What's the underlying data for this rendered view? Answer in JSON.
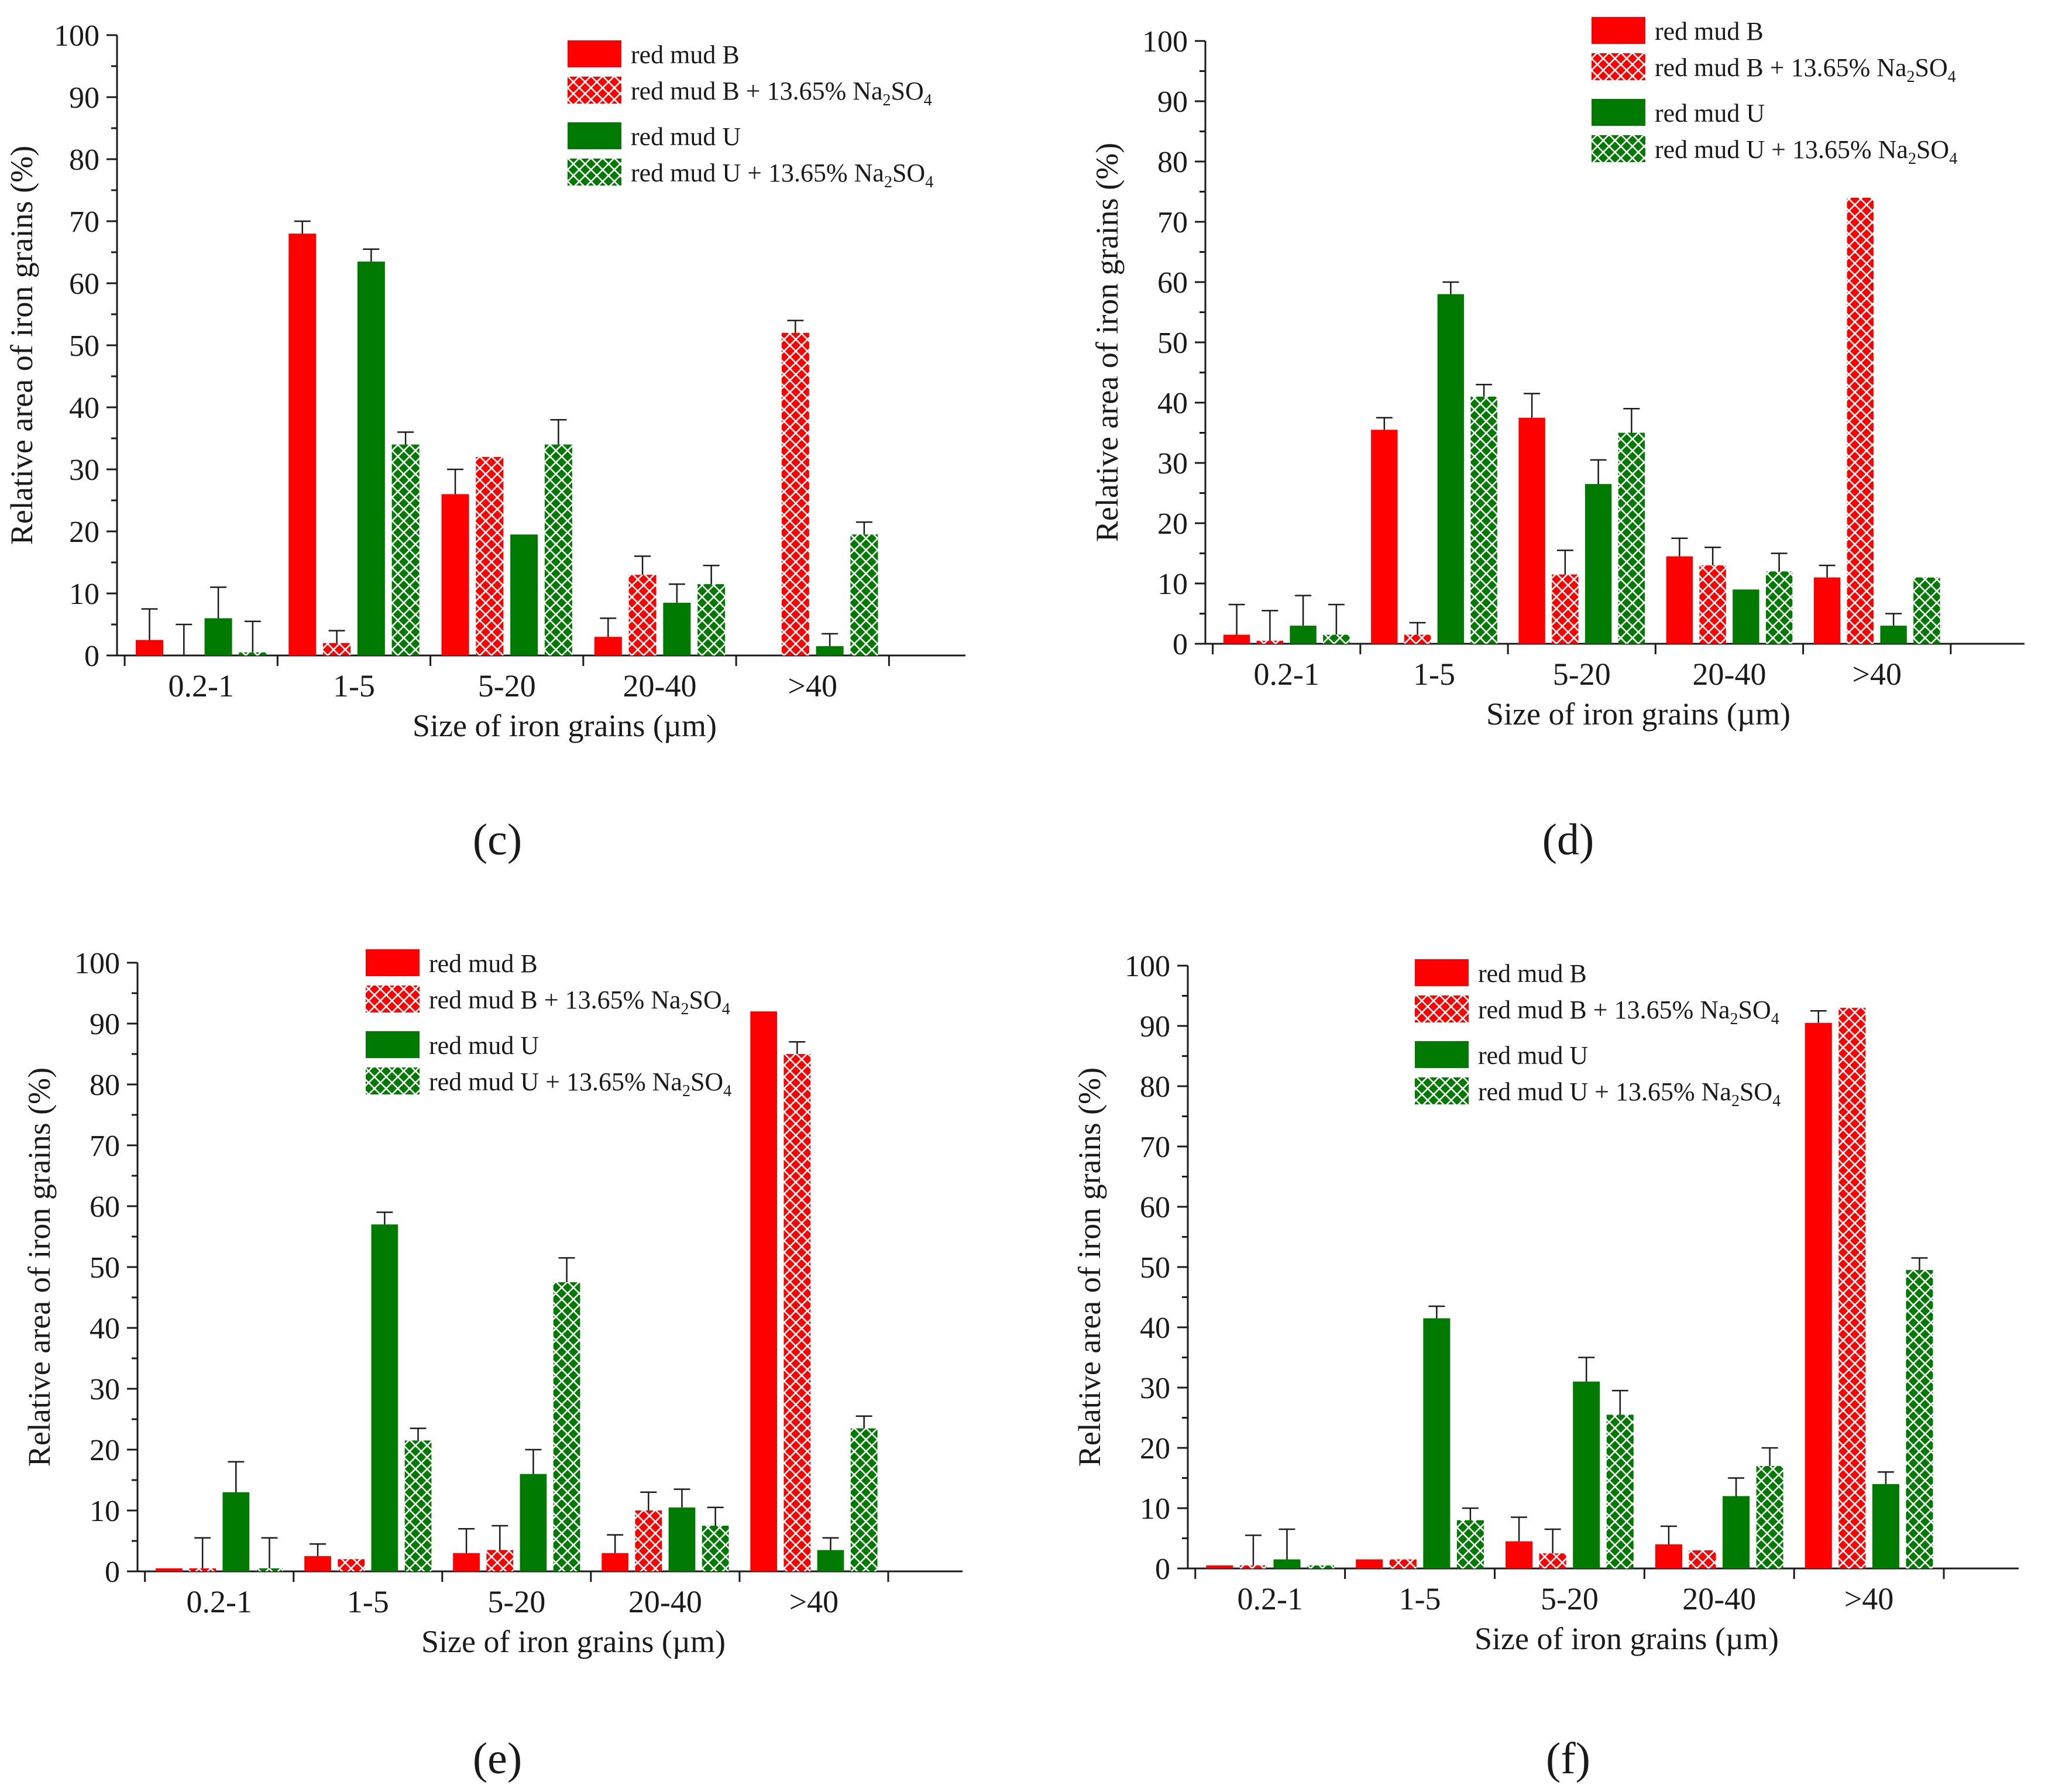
{
  "colors": {
    "red": "#ff0000",
    "green": "#007a00",
    "axis": "#1a1a1a"
  },
  "legend": {
    "entries": [
      {
        "key": "b",
        "text": "red mud B",
        "pattern": "solid",
        "color": "red"
      },
      {
        "key": "bna",
        "text": "red mud B + 13.65% Na",
        "sub1": "2",
        "mid": "SO",
        "sub2": "4",
        "pattern": "cross",
        "color": "red"
      },
      {
        "key": "u",
        "text": "red mud U",
        "pattern": "solid",
        "color": "green"
      },
      {
        "key": "una",
        "text": "red mud U + 13.65% Na",
        "sub1": "2",
        "mid": "SO",
        "sub2": "4",
        "pattern": "cross",
        "color": "green"
      }
    ]
  },
  "chart_data": [
    {
      "panel": "c",
      "type": "bar",
      "categories": [
        "0.2-1",
        "1-5",
        "5-20",
        "20-40",
        ">40"
      ],
      "xlabel": "Size of iron grains (µm)",
      "ylabel": "Relative area of iron grains (%)",
      "ylim": [
        0,
        100
      ],
      "yticks": [
        0,
        10,
        20,
        30,
        40,
        50,
        60,
        70,
        80,
        90,
        100
      ],
      "series": [
        {
          "name": "red mud B",
          "values": [
            2.5,
            68,
            26,
            3,
            0
          ],
          "errors": [
            5,
            2,
            4,
            3,
            0
          ]
        },
        {
          "name": "red mud B + 13.65% Na2SO4",
          "values": [
            0,
            2,
            32,
            13,
            52
          ],
          "errors": [
            5,
            2,
            0,
            3,
            2
          ]
        },
        {
          "name": "red mud U",
          "values": [
            6,
            63.5,
            19.5,
            8.5,
            1.5
          ],
          "errors": [
            5,
            2,
            0,
            3,
            2
          ]
        },
        {
          "name": "red mud U + 13.65% Na2SO4",
          "values": [
            0.5,
            34,
            34,
            11.5,
            19.5
          ],
          "errors": [
            5,
            2,
            4,
            3,
            2
          ]
        }
      ]
    },
    {
      "panel": "d",
      "type": "bar",
      "categories": [
        "0.2-1",
        "1-5",
        "5-20",
        "20-40",
        ">40"
      ],
      "xlabel": "Size of iron grains (µm)",
      "ylabel": "Relative area of iron grains (%)",
      "ylim": [
        0,
        100
      ],
      "yticks": [
        0,
        10,
        20,
        30,
        40,
        50,
        60,
        70,
        80,
        90,
        100
      ],
      "series": [
        {
          "name": "red mud B",
          "values": [
            1.5,
            35.5,
            37.5,
            14.5,
            11
          ],
          "errors": [
            5,
            2,
            4,
            3,
            2
          ]
        },
        {
          "name": "red mud B + 13.65% Na2SO4",
          "values": [
            0.5,
            1.5,
            11.5,
            13,
            74
          ],
          "errors": [
            5,
            2,
            4,
            3,
            0
          ]
        },
        {
          "name": "red mud U",
          "values": [
            3,
            58,
            26.5,
            9,
            3
          ],
          "errors": [
            5,
            2,
            4,
            0,
            2
          ]
        },
        {
          "name": "red mud U + 13.65% Na2SO4",
          "values": [
            1.5,
            41,
            35,
            12,
            11
          ],
          "errors": [
            5,
            2,
            4,
            3,
            0
          ]
        }
      ]
    },
    {
      "panel": "e",
      "type": "bar",
      "categories": [
        "0.2-1",
        "1-5",
        "5-20",
        "20-40",
        ">40"
      ],
      "xlabel": "Size of iron grains (µm)",
      "ylabel": "Relative area of iron grains (%)",
      "ylim": [
        0,
        100
      ],
      "yticks": [
        0,
        10,
        20,
        30,
        40,
        50,
        60,
        70,
        80,
        90,
        100
      ],
      "series": [
        {
          "name": "red mud B",
          "values": [
            0.5,
            2.5,
            3,
            3,
            92
          ],
          "errors": [
            0,
            2,
            4,
            3,
            0
          ]
        },
        {
          "name": "red mud B + 13.65% Na2SO4",
          "values": [
            0.5,
            2,
            3.5,
            10,
            85
          ],
          "errors": [
            5,
            0,
            4,
            3,
            2
          ]
        },
        {
          "name": "red mud U",
          "values": [
            13,
            57,
            16,
            10.5,
            3.5
          ],
          "errors": [
            5,
            2,
            4,
            3,
            2
          ]
        },
        {
          "name": "red mud U + 13.65% Na2SO4",
          "values": [
            0.5,
            21.5,
            47.5,
            7.5,
            23.5
          ],
          "errors": [
            5,
            2,
            4,
            3,
            2
          ]
        }
      ]
    },
    {
      "panel": "f",
      "type": "bar",
      "categories": [
        "0.2-1",
        "1-5",
        "5-20",
        "20-40",
        ">40"
      ],
      "xlabel": "Size of iron grains (µm)",
      "ylabel": "Relative area of iron grains (%)",
      "ylim": [
        0,
        100
      ],
      "yticks": [
        0,
        10,
        20,
        30,
        40,
        50,
        60,
        70,
        80,
        90,
        100
      ],
      "series": [
        {
          "name": "red mud B",
          "values": [
            0.5,
            1.5,
            4.5,
            4,
            90.5
          ],
          "errors": [
            0,
            0,
            4,
            3,
            2
          ]
        },
        {
          "name": "red mud B + 13.65% Na2SO4",
          "values": [
            0.5,
            1.5,
            2.5,
            3,
            93
          ],
          "errors": [
            5,
            0,
            4,
            0,
            0
          ]
        },
        {
          "name": "red mud U",
          "values": [
            1.5,
            41.5,
            31,
            12,
            14
          ],
          "errors": [
            5,
            2,
            4,
            3,
            2
          ]
        },
        {
          "name": "red mud U + 13.65% Na2SO4",
          "values": [
            0.5,
            8,
            25.5,
            17,
            49.5
          ],
          "errors": [
            0,
            2,
            4,
            3,
            2
          ]
        }
      ]
    }
  ],
  "panel_labels": [
    "(c)",
    "(d)",
    "(e)",
    "(f)"
  ]
}
